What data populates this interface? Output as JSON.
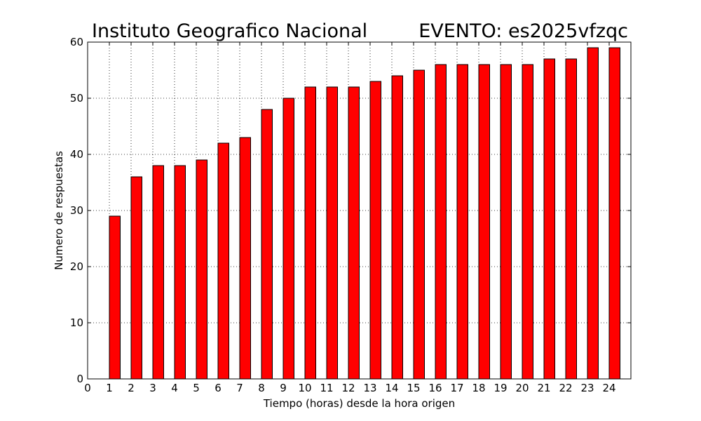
{
  "chart_data": {
    "type": "bar",
    "title_left": "Instituto Geografico Nacional",
    "title_right": "EVENTO: es2025vfzqc",
    "xlabel": "Tiempo (horas) desde la hora origen",
    "ylabel": "Numero de respuestas",
    "xlim": [
      0,
      25
    ],
    "ylim": [
      0,
      60
    ],
    "x_ticks": [
      0,
      1,
      2,
      3,
      4,
      5,
      6,
      7,
      8,
      9,
      10,
      11,
      12,
      13,
      14,
      15,
      16,
      17,
      18,
      19,
      20,
      21,
      22,
      23,
      24
    ],
    "y_ticks": [
      0,
      10,
      20,
      30,
      40,
      50,
      60
    ],
    "grid": true,
    "bar_color": "#ff0000",
    "bar_width": 0.5,
    "x": [
      1,
      2,
      3,
      4,
      5,
      6,
      7,
      8,
      9,
      10,
      11,
      12,
      13,
      14,
      15,
      16,
      17,
      18,
      19,
      20,
      21,
      22,
      23,
      24
    ],
    "values": [
      29,
      36,
      38,
      38,
      39,
      42,
      43,
      48,
      50,
      52,
      52,
      52,
      53,
      54,
      55,
      56,
      56,
      56,
      56,
      56,
      57,
      57,
      59,
      59
    ]
  }
}
